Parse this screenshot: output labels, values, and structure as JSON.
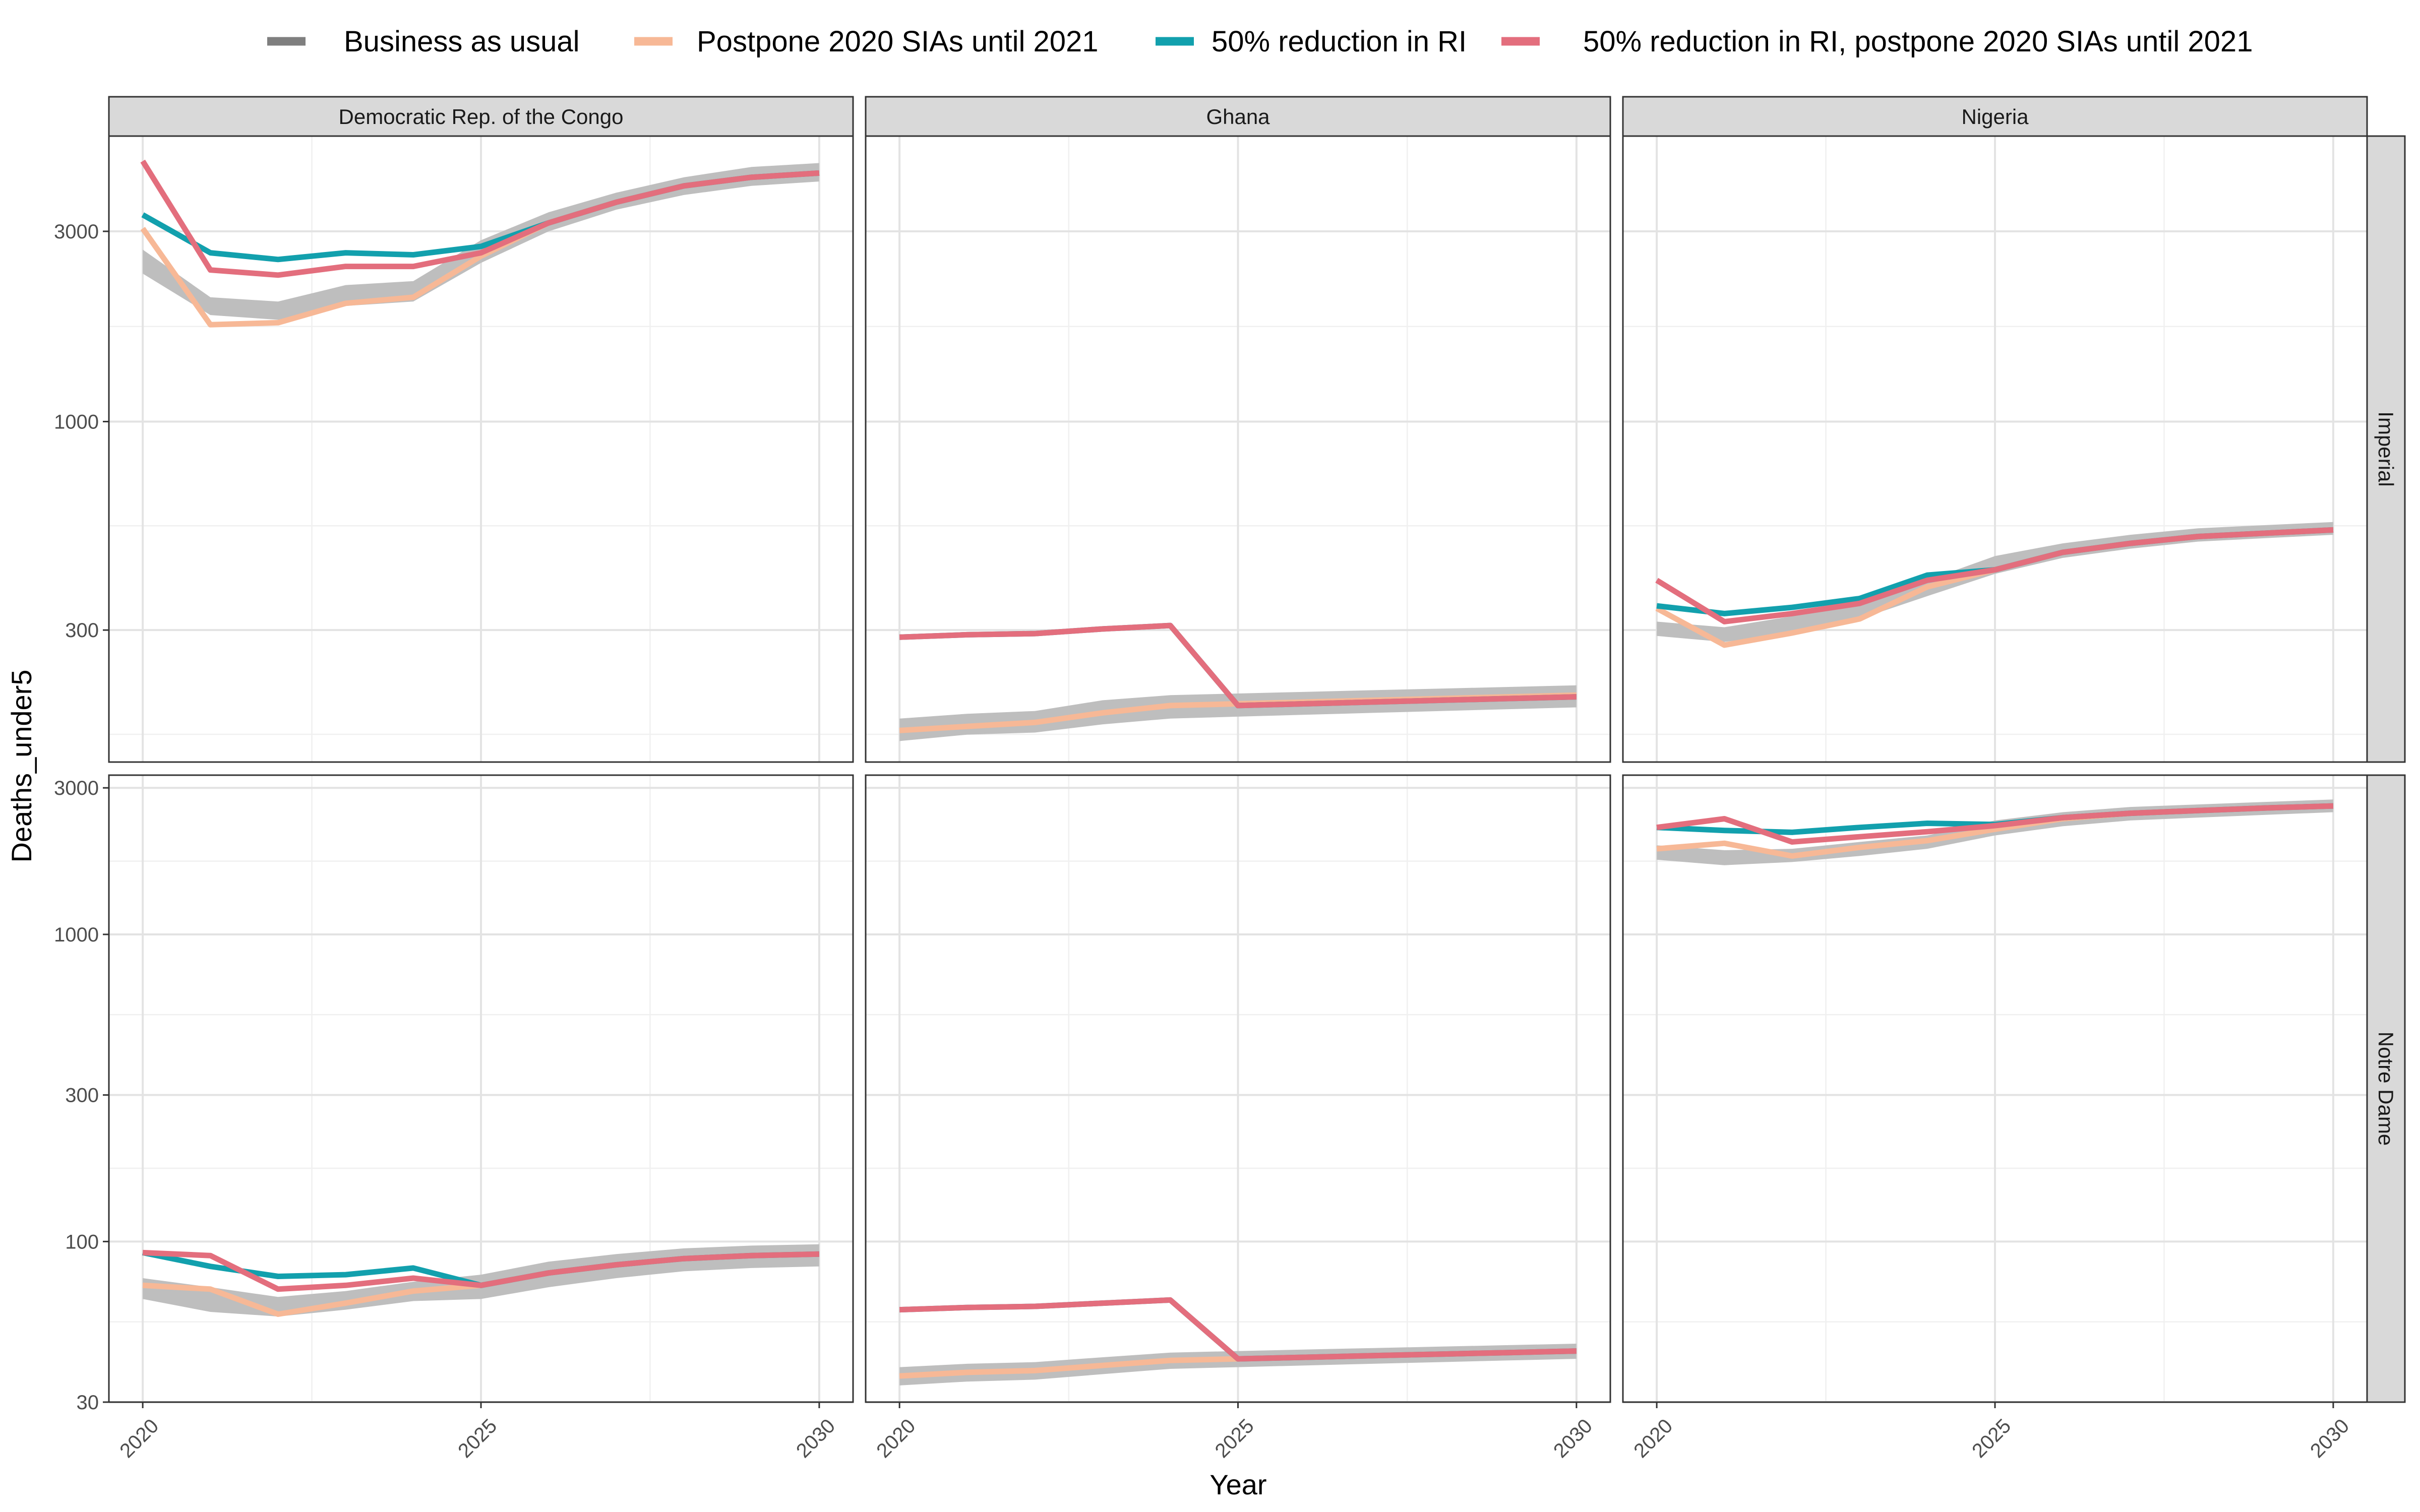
{
  "chart_data": {
    "type": "line",
    "xlabel": "Year",
    "ylabel": "Deaths_under5",
    "x_scale": "linear",
    "y_scale": "log",
    "x_ticks": [
      2020,
      2025,
      2030
    ],
    "columns": [
      "Democratic Rep. of the Congo",
      "Ghana",
      "Nigeria"
    ],
    "rows": [
      "Imperial",
      "Notre Dame"
    ],
    "grid": true,
    "legend_position": "top",
    "legend": [
      {
        "name": "Business as usual",
        "color": "#7f7f7f"
      },
      {
        "name": "Postpone 2020 SIAs until 2021",
        "color": "#f7b896"
      },
      {
        "name": "50% reduction in RI",
        "color": "#12a0ad"
      },
      {
        "name": "50% reduction in RI, postpone 2020 SIAs until 2021",
        "color": "#e36e7d"
      }
    ],
    "panel_rows": [
      {
        "label": "Imperial",
        "ylim": [
          140,
          5200
        ],
        "yticks": [
          300,
          1000,
          3000
        ],
        "panels": [
          {
            "x": [
              2020,
              2021,
              2022,
              2023,
              2024,
              2025,
              2026,
              2027,
              2028,
              2029,
              2030
            ],
            "band": {
              "low": [
                2350,
                1850,
                1800,
                1950,
                2000,
                2500,
                3000,
                3400,
                3700,
                3900,
                4000
              ],
              "high": [
                2700,
                2050,
                2000,
                2200,
                2250,
                2850,
                3350,
                3750,
                4100,
                4350,
                4450
              ]
            },
            "series": [
              {
                "values": [
                  3050,
                  1750,
                  1770,
                  1980,
                  2050,
                  2600,
                  3150,
                  3550,
                  3900,
                  4100,
                  4200
                ]
              },
              {
                "values": [
                  3300,
                  2650,
                  2550,
                  2650,
                  2620,
                  2750,
                  3150,
                  3550,
                  3900,
                  4100,
                  4200
                ]
              },
              {
                "values": [
                  4500,
                  2400,
                  2330,
                  2450,
                  2450,
                  2650,
                  3150,
                  3550,
                  3900,
                  4100,
                  4200
                ]
              }
            ]
          },
          {
            "x": [
              2020,
              2021,
              2022,
              2023,
              2024,
              2025,
              2026,
              2027,
              2028,
              2029,
              2030
            ],
            "band": {
              "low": [
                158,
                164,
                166,
                174,
                180,
                182,
                184,
                186,
                188,
                190,
                192
              ],
              "high": [
                180,
                185,
                188,
                200,
                206,
                208,
                210,
                212,
                214,
                216,
                218
              ]
            },
            "series": [
              {
                "values": [
                  168,
                  172,
                  176,
                  186,
                  194,
                  196,
                  198,
                  200,
                  202,
                  204,
                  206
                ]
              },
              {
                "values": [
                  288,
                  292,
                  294,
                  302,
                  308,
                  194,
                  196,
                  198,
                  200,
                  202,
                  204
                ]
              },
              {
                "values": [
                  288,
                  292,
                  294,
                  302,
                  308,
                  194,
                  196,
                  198,
                  200,
                  202,
                  204
                ]
              }
            ]
          },
          {
            "x": [
              2020,
              2021,
              2022,
              2023,
              2024,
              2025,
              2026,
              2027,
              2028,
              2029,
              2030
            ],
            "band": {
              "low": [
                290,
                280,
                295,
                320,
                365,
                415,
                455,
                480,
                500,
                510,
                520
              ],
              "high": [
                315,
                305,
                325,
                345,
                400,
                460,
                495,
                520,
                540,
                550,
                560
              ]
            },
            "series": [
              {
                "values": [
                  340,
                  275,
                  295,
                  320,
                  385,
                  425,
                  470,
                  495,
                  515,
                  525,
                  535
                ]
              },
              {
                "values": [
                  345,
                  330,
                  342,
                  360,
                  412,
                  425,
                  470,
                  495,
                  515,
                  525,
                  535
                ]
              },
              {
                "values": [
                  400,
                  315,
                  330,
                  350,
                  400,
                  425,
                  470,
                  495,
                  515,
                  525,
                  535
                ]
              }
            ]
          }
        ]
      },
      {
        "label": "Notre Dame",
        "ylim": [
          30,
          3300
        ],
        "yticks": [
          30,
          100,
          300,
          1000,
          3000
        ],
        "panels": [
          {
            "x": [
              2020,
              2021,
              2022,
              2023,
              2024,
              2025,
              2026,
              2027,
              2028,
              2029,
              2030
            ],
            "band": {
              "low": [
                65,
                59,
                57,
                60,
                64,
                65,
                71,
                76,
                80,
                82,
                83
              ],
              "high": [
                76,
                71,
                66,
                69,
                74,
                78,
                86,
                91,
                95,
                97,
                98
              ]
            },
            "series": [
              {
                "values": [
                  72,
                  70,
                  58,
                  63,
                  69,
                  72,
                  79,
                  84,
                  88,
                  90,
                  91
                ]
              },
              {
                "values": [
                  92,
                  83,
                  77,
                  78,
                  82,
                  72,
                  79,
                  84,
                  88,
                  90,
                  91
                ]
              },
              {
                "values": [
                  92,
                  90,
                  70,
                  72,
                  76,
                  72,
                  79,
                  84,
                  88,
                  90,
                  91
                ]
              }
            ]
          },
          {
            "x": [
              2020,
              2021,
              2022,
              2023,
              2024,
              2025,
              2026,
              2027,
              2028,
              2029,
              2030
            ],
            "band": {
              "low": [
                34,
                35,
                35.5,
                37,
                38.5,
                39,
                39.5,
                40,
                40.5,
                41,
                41.5
              ],
              "high": [
                39,
                40,
                40.5,
                42,
                43.5,
                44,
                44.5,
                45,
                45.5,
                46,
                46.5
              ]
            },
            "series": [
              {
                "values": [
                  36.5,
                  37.5,
                  38,
                  39.5,
                  41,
                  41.5,
                  42,
                  42.5,
                  43,
                  43.5,
                  44
                ]
              },
              {
                "values": [
                  60,
                  61,
                  61.5,
                  63,
                  64.5,
                  41.5,
                  42,
                  42.5,
                  43,
                  43.5,
                  44
                ]
              },
              {
                "values": [
                  60,
                  61,
                  61.5,
                  63,
                  64.5,
                  41.5,
                  42,
                  42.5,
                  43,
                  43.5,
                  44
                ]
              }
            ]
          },
          {
            "x": [
              2020,
              2021,
              2022,
              2023,
              2024,
              2025,
              2026,
              2027,
              2028,
              2029,
              2030
            ],
            "band": {
              "low": [
                1750,
                1680,
                1720,
                1800,
                1900,
                2100,
                2250,
                2350,
                2400,
                2450,
                2500
              ],
              "high": [
                1950,
                1880,
                1900,
                2000,
                2100,
                2350,
                2500,
                2600,
                2650,
                2700,
                2750
              ]
            },
            "series": [
              {
                "values": [
                  1900,
                  1980,
                  1800,
                  1920,
                  2020,
                  2200,
                  2380,
                  2480,
                  2530,
                  2580,
                  2620
                ]
              },
              {
                "values": [
                  2230,
                  2180,
                  2150,
                  2230,
                  2300,
                  2280,
                  2400,
                  2480,
                  2530,
                  2580,
                  2620
                ]
              },
              {
                "values": [
                  2230,
                  2380,
                  2000,
                  2080,
                  2160,
                  2260,
                  2400,
                  2480,
                  2530,
                  2580,
                  2620
                ]
              }
            ]
          }
        ]
      }
    ]
  }
}
